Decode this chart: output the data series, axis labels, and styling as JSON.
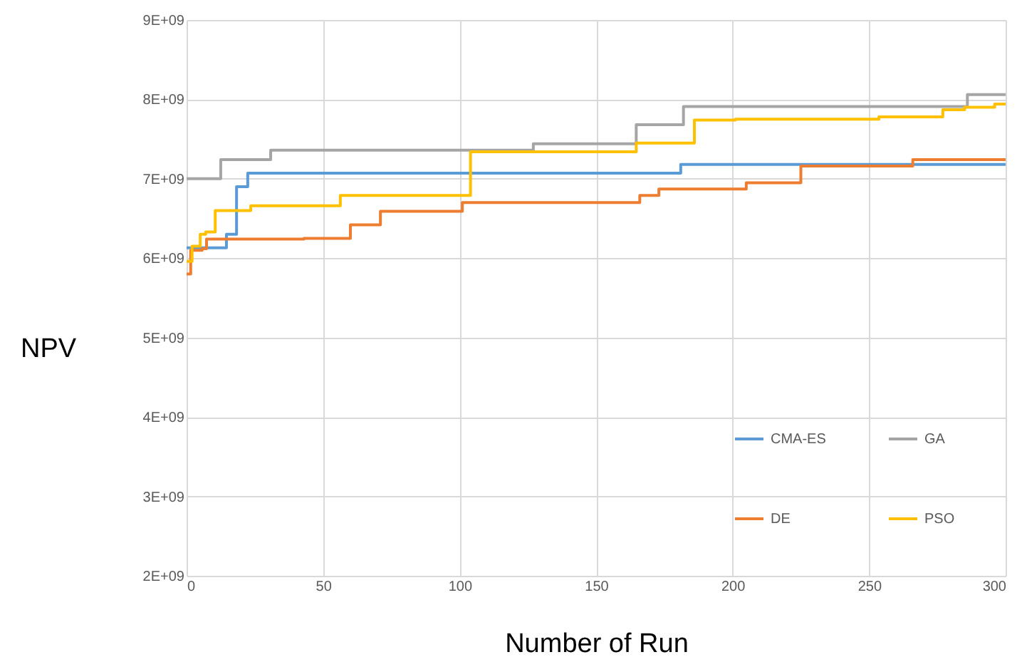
{
  "chart_data": {
    "type": "step",
    "xlabel": "Number of Run",
    "ylabel": "NPV",
    "xlim": [
      0,
      300
    ],
    "xticks": [
      0,
      50,
      100,
      150,
      200,
      250,
      300
    ],
    "ylim": [
      2000000000.0,
      9000000000.0
    ],
    "yticks": [
      {
        "value": 2000000000.0,
        "label": "2E+09"
      },
      {
        "value": 3000000000.0,
        "label": "3E+09"
      },
      {
        "value": 4000000000.0,
        "label": "4E+09"
      },
      {
        "value": 5000000000.0,
        "label": "5E+09"
      },
      {
        "value": 6000000000.0,
        "label": "6E+09"
      },
      {
        "value": 7000000000.0,
        "label": "7E+09"
      },
      {
        "value": 8000000000.0,
        "label": "8E+09"
      },
      {
        "value": 9000000000.0,
        "label": "9E+09"
      }
    ],
    "grid": true,
    "legend": "bottom right",
    "series": [
      {
        "name": "CMA-ES",
        "color": "#5b9bd5",
        "x": [
          0,
          14.6,
          18.3,
          22.4,
          181,
          300
        ],
        "values": [
          6130000000.0,
          6300000000.0,
          6900000000.0,
          7070000000.0,
          7180000000.0,
          7180000000.0
        ]
      },
      {
        "name": "DE",
        "color": "#ed7d31",
        "x": [
          0,
          1.5,
          5.7,
          7.3,
          43,
          60,
          71,
          101,
          166,
          173,
          205,
          225,
          266,
          300
        ],
        "values": [
          5800000000.0,
          6100000000.0,
          6120000000.0,
          6240000000.0,
          6250000000.0,
          6420000000.0,
          6590000000.0,
          6700000000.0,
          6790000000.0,
          6870000000.0,
          6950000000.0,
          7160000000.0,
          7240000000.0,
          7240000000.0
        ]
      },
      {
        "name": "GA",
        "color": "#a5a5a5",
        "x": [
          0,
          12.5,
          30.8,
          127,
          164.7,
          182,
          286,
          300
        ],
        "values": [
          7000000000.0,
          7240000000.0,
          7360000000.0,
          7440000000.0,
          7680000000.0,
          7910000000.0,
          8060000000.0,
          8060000000.0
        ]
      },
      {
        "name": "PSO",
        "color": "#ffc000",
        "x": [
          0,
          2,
          5,
          7,
          10.5,
          23.5,
          56.3,
          104,
          164.7,
          186,
          201,
          253.6,
          277,
          285,
          296,
          300
        ],
        "values": [
          5960000000.0,
          6150000000.0,
          6300000000.0,
          6330000000.0,
          6600000000.0,
          6660000000.0,
          6790000000.0,
          7340000000.0,
          7450000000.0,
          7740000000.0,
          7750000000.0,
          7780000000.0,
          7870000000.0,
          7900000000.0,
          7940000000.0,
          7940000000.0
        ]
      }
    ]
  }
}
